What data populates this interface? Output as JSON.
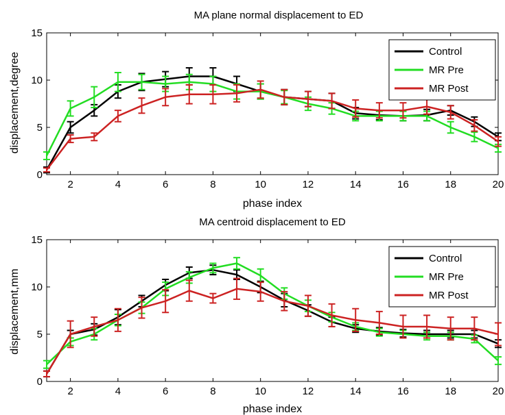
{
  "chart_data": [
    {
      "type": "line",
      "title": "MA plane normal displacement to ED",
      "xlabel": "phase index",
      "ylabel": "displacement,degree",
      "xlim": [
        1,
        20
      ],
      "ylim": [
        0,
        15
      ],
      "xticks": [
        2,
        4,
        6,
        8,
        10,
        12,
        14,
        16,
        18,
        20
      ],
      "yticks": [
        0,
        5,
        10,
        15
      ],
      "grid": false,
      "legend_position": "top-right",
      "x": [
        1,
        2,
        3,
        4,
        5,
        6,
        7,
        8,
        9,
        10,
        11,
        12,
        13,
        14,
        15,
        16,
        17,
        18,
        19,
        20
      ],
      "series": [
        {
          "name": "Control",
          "color": "#000000",
          "values": [
            0.5,
            5.0,
            6.8,
            8.8,
            9.8,
            10.1,
            10.4,
            10.4,
            9.6,
            8.8,
            8.2,
            8.0,
            7.8,
            6.5,
            6.3,
            6.2,
            6.3,
            6.8,
            5.6,
            4.0
          ],
          "errors": [
            0.3,
            0.6,
            0.6,
            0.7,
            0.9,
            0.8,
            0.9,
            0.9,
            0.8,
            0.8,
            0.8,
            0.8,
            0.8,
            0.6,
            0.5,
            0.5,
            0.6,
            0.5,
            0.5,
            0.4
          ]
        },
        {
          "name": "MR Pre",
          "color": "#22dd22",
          "values": [
            2.0,
            7.0,
            8.2,
            9.8,
            9.8,
            9.6,
            9.8,
            9.6,
            8.8,
            8.8,
            8.2,
            7.5,
            7.0,
            6.2,
            6.2,
            6.2,
            6.2,
            5.0,
            4.0,
            2.8
          ],
          "errors": [
            0.4,
            0.8,
            1.1,
            1.0,
            0.8,
            0.8,
            0.8,
            0.8,
            0.8,
            0.8,
            0.7,
            0.7,
            0.6,
            0.5,
            0.5,
            0.5,
            0.5,
            0.6,
            0.5,
            0.4
          ]
        },
        {
          "name": "MR Post",
          "color": "#cc2222",
          "values": [
            0.5,
            3.8,
            4.0,
            6.2,
            7.3,
            8.2,
            8.5,
            8.5,
            8.6,
            9.0,
            8.2,
            8.0,
            7.8,
            7.0,
            6.8,
            6.8,
            7.2,
            6.6,
            5.2,
            3.5
          ],
          "errors": [
            0.2,
            0.4,
            0.4,
            0.6,
            0.8,
            0.9,
            1.0,
            1.0,
            0.9,
            0.9,
            0.8,
            0.8,
            0.8,
            0.9,
            0.8,
            0.8,
            0.8,
            0.7,
            0.6,
            0.5
          ]
        }
      ]
    },
    {
      "type": "line",
      "title": "MA centroid displacement to ED",
      "xlabel": "phase index",
      "ylabel": "displacement,mm",
      "xlim": [
        1,
        20
      ],
      "ylim": [
        0,
        15
      ],
      "xticks": [
        2,
        4,
        6,
        8,
        10,
        12,
        14,
        16,
        18,
        20
      ],
      "yticks": [
        0,
        5,
        10,
        15
      ],
      "grid": false,
      "legend_position": "top-right",
      "x": [
        1,
        2,
        3,
        4,
        5,
        6,
        7,
        8,
        9,
        10,
        11,
        12,
        13,
        14,
        15,
        16,
        17,
        18,
        19,
        20
      ],
      "series": [
        {
          "name": "Control",
          "color": "#000000",
          "values": [
            0.8,
            5.0,
            5.5,
            6.8,
            8.5,
            10.2,
            11.5,
            11.8,
            11.3,
            10.0,
            8.6,
            7.5,
            6.3,
            5.6,
            5.3,
            5.1,
            5.0,
            5.0,
            5.0,
            4.0
          ],
          "errors": [
            0.3,
            0.4,
            0.6,
            0.8,
            0.6,
            0.6,
            0.6,
            0.5,
            0.5,
            0.6,
            0.7,
            0.6,
            0.5,
            0.4,
            0.4,
            0.4,
            0.4,
            0.4,
            0.4,
            0.4
          ]
        },
        {
          "name": "MR Pre",
          "color": "#22dd22",
          "values": [
            1.8,
            4.2,
            5.0,
            6.5,
            7.8,
            9.8,
            11.0,
            12.0,
            12.5,
            11.2,
            9.3,
            8.0,
            6.8,
            5.8,
            5.2,
            5.0,
            4.8,
            4.8,
            4.5,
            2.2
          ],
          "errors": [
            0.4,
            0.4,
            0.6,
            0.6,
            0.6,
            0.7,
            0.6,
            0.5,
            0.6,
            0.7,
            0.6,
            0.6,
            0.5,
            0.4,
            0.4,
            0.4,
            0.4,
            0.4,
            0.4,
            0.4
          ]
        },
        {
          "name": "MR Post",
          "color": "#cc2222",
          "values": [
            0.8,
            5.0,
            5.8,
            6.5,
            7.8,
            8.5,
            9.6,
            8.8,
            9.8,
            9.5,
            8.5,
            8.0,
            7.0,
            6.5,
            6.2,
            5.8,
            5.8,
            5.6,
            5.6,
            5.0
          ],
          "errors": [
            0.3,
            1.4,
            1.0,
            1.2,
            1.1,
            1.2,
            1.1,
            0.5,
            1.1,
            1.0,
            1.0,
            1.1,
            1.2,
            1.2,
            1.2,
            1.2,
            1.2,
            1.2,
            1.2,
            1.2
          ]
        }
      ]
    }
  ]
}
